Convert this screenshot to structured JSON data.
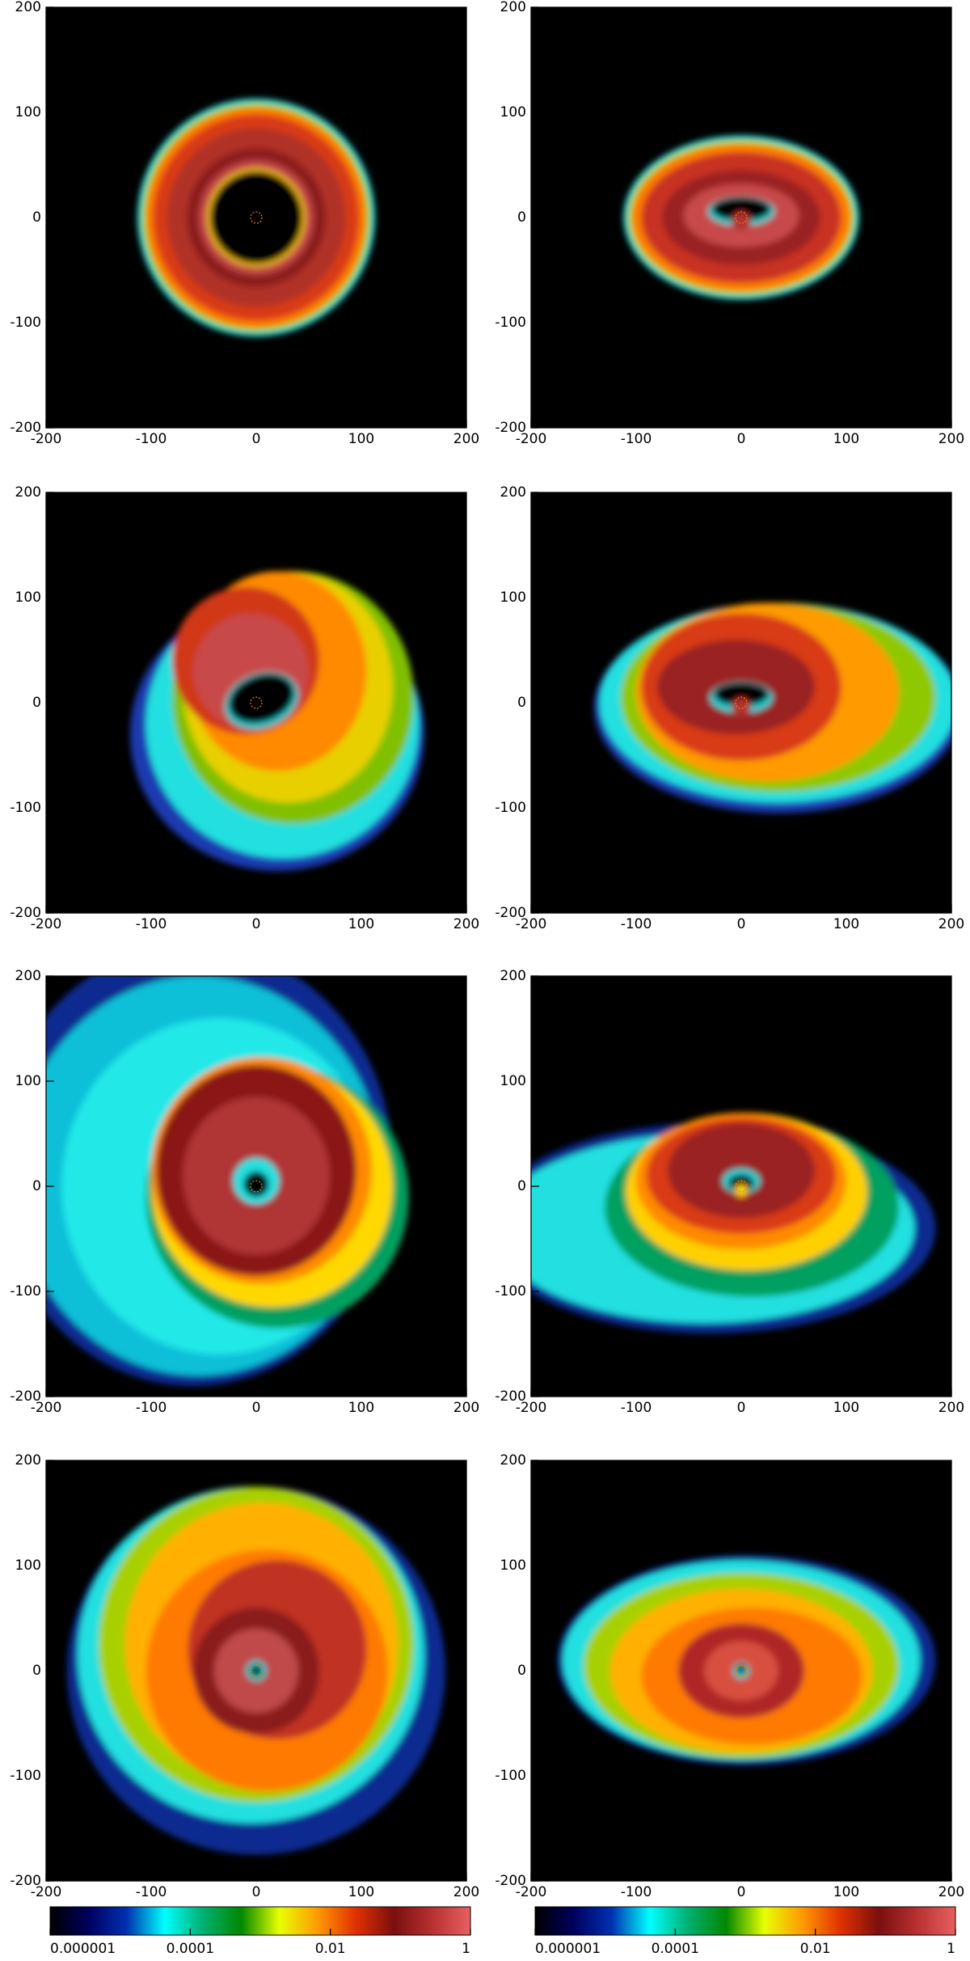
{
  "chart_data": [
    {
      "type": "image",
      "xlim": [
        -200,
        200
      ],
      "ylim": [
        -200,
        200
      ],
      "xticks": [
        -200,
        -100,
        0,
        100,
        200
      ],
      "yticks": [
        -200,
        -100,
        0,
        100,
        200
      ]
    },
    {
      "type": "image",
      "xlim": [
        -200,
        200
      ],
      "ylim": [
        -200,
        200
      ],
      "xticks": [
        -200,
        -100,
        0,
        100,
        200
      ],
      "yticks": [
        -200,
        -100,
        0,
        100,
        200
      ]
    },
    {
      "type": "image",
      "xlim": [
        -200,
        200
      ],
      "ylim": [
        -200,
        200
      ],
      "xticks": [
        -200,
        -100,
        0,
        100,
        200
      ],
      "yticks": [
        -200,
        -100,
        0,
        100,
        200
      ]
    },
    {
      "type": "image",
      "xlim": [
        -200,
        200
      ],
      "ylim": [
        -200,
        200
      ],
      "xticks": [
        -200,
        -100,
        0,
        100,
        200
      ],
      "yticks": [
        -200,
        -100,
        0,
        100,
        200
      ]
    },
    {
      "type": "image",
      "xlim": [
        -200,
        200
      ],
      "ylim": [
        -200,
        200
      ],
      "xticks": [
        -200,
        -100,
        0,
        100,
        200
      ],
      "yticks": [
        -200,
        -100,
        0,
        100,
        200
      ]
    },
    {
      "type": "image",
      "xlim": [
        -200,
        200
      ],
      "ylim": [
        -200,
        200
      ],
      "xticks": [
        -200,
        -100,
        0,
        100,
        200
      ],
      "yticks": [
        -200,
        -100,
        0,
        100,
        200
      ]
    },
    {
      "type": "image",
      "xlim": [
        -200,
        200
      ],
      "ylim": [
        -200,
        200
      ],
      "xticks": [
        -200,
        -100,
        0,
        100,
        200
      ],
      "yticks": [
        -200,
        -100,
        0,
        100,
        200
      ],
      "colorbar": {
        "scale": "log",
        "lim": [
          1e-06,
          1
        ],
        "ticks": [
          1e-06,
          0.0001,
          0.01,
          1
        ],
        "colors": [
          "#000000",
          "#00005e",
          "#0030b0",
          "#00ffff",
          "#00b070",
          "#008800",
          "#e8ff00",
          "#ff9900",
          "#e03000",
          "#7a0f0f",
          "#b83030",
          "#e86060"
        ]
      }
    },
    {
      "type": "image",
      "xlim": [
        -200,
        200
      ],
      "ylim": [
        -200,
        200
      ],
      "xticks": [
        -200,
        -100,
        0,
        100,
        200
      ],
      "yticks": [
        -200,
        -100,
        0,
        100,
        200
      ],
      "colorbar": {
        "scale": "log",
        "lim": [
          1e-06,
          1
        ],
        "ticks": [
          1e-06,
          0.0001,
          0.01,
          1
        ],
        "colors": [
          "#000000",
          "#00005e",
          "#0030b0",
          "#00ffff",
          "#00b070",
          "#008800",
          "#e8ff00",
          "#ff9900",
          "#e03000",
          "#7a0f0f",
          "#b83030",
          "#e86060"
        ]
      }
    }
  ]
}
